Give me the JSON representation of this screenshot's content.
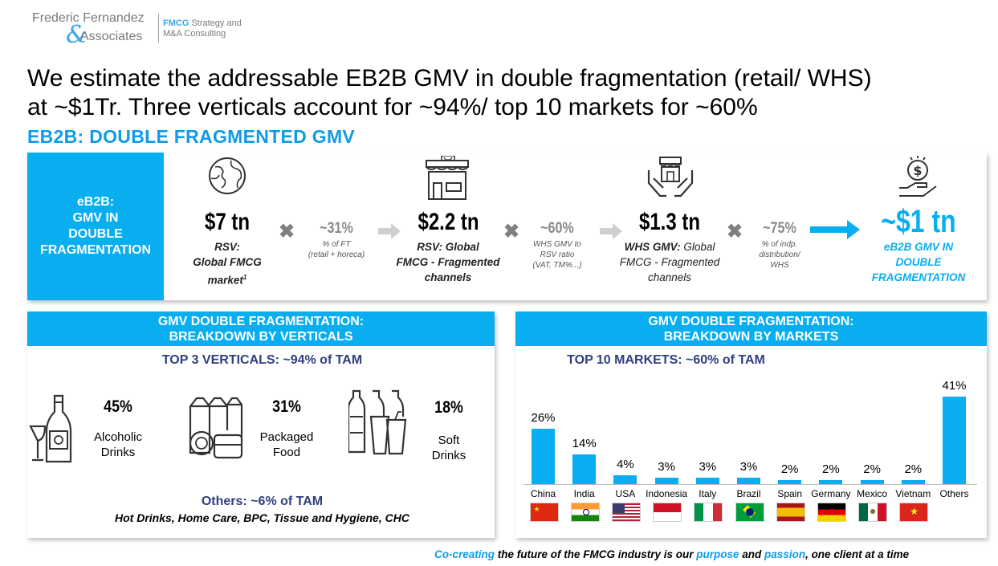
{
  "logo": {
    "name_line1": "Frederic Fernandez",
    "amp": "&",
    "name_line2": "Associates",
    "tag_line1": "FMCG Strategy and",
    "tag_line2": "M&A Consulting"
  },
  "headline": {
    "line1": "We estimate the addressable EB2B GMV in double fragmentation (retail/ WHS)",
    "line2": "at ~$1Tr. Three verticals account for ~94%/ top 10 markets for ~60%"
  },
  "subheadline": "EB2B: DOUBLE FRAGMENTED GMV",
  "flow": {
    "label_lines": [
      "eB2B:",
      "GMV IN",
      "DOUBLE",
      "FRAGMENTATION"
    ],
    "steps": [
      {
        "value": "$7 tn",
        "desc_bold": "RSV:",
        "desc_line2": "Global FMCG",
        "desc_line3": "market",
        "sup": "1",
        "icon": "globe-icon"
      },
      {
        "value": "$2.2 tn",
        "desc_bold": "RSV: Global",
        "desc_line2": "FMCG - Fragmented",
        "desc_line3": "channels",
        "icon": "storefront-icon"
      },
      {
        "value": "$1.3 tn",
        "desc_bold": "WHS GMV:",
        "desc_rest": " Global",
        "desc_line2": "FMCG - Fragmented",
        "desc_line3": "channels",
        "icon": "hands-shop-icon"
      },
      {
        "value": "~$1 tn",
        "desc_line1": "eB2B GMV IN",
        "desc_line2": "DOUBLE",
        "desc_line3": "FRAGMENTATION",
        "icon": "hand-coin-icon"
      }
    ],
    "ratios": [
      {
        "value": "~31%",
        "notes": [
          "% of FT",
          "(retail + horeca)"
        ]
      },
      {
        "value": "~60%",
        "notes": [
          "WHS GMV to",
          "RSV ratio",
          "(VAT, TM%...)"
        ]
      },
      {
        "value": "~75%",
        "notes": [
          "% of indp.",
          "distribution/",
          "WHS"
        ]
      }
    ],
    "multiply_symbol": "✖"
  },
  "verticals": {
    "title_line1": "GMV DOUBLE FRAGMENTATION:",
    "title_line2": "BREAKDOWN BY VERTICALS",
    "top_heading": "TOP 3 VERTICALS: ~94% of TAM",
    "items": [
      {
        "pct": "45%",
        "label_line1": "Alcoholic",
        "label_line2": "Drinks",
        "icon": "wine-bottle-icon"
      },
      {
        "pct": "31%",
        "label_line1": "Packaged",
        "label_line2": "Food",
        "icon": "packaged-food-icon"
      },
      {
        "pct": "18%",
        "label_line1": "Soft",
        "label_line2": "Drinks",
        "icon": "soft-drinks-icon"
      }
    ],
    "others_heading": "Others: ~6% of TAM",
    "others_list": "Hot Drinks, Home Care, BPC, Tissue and Hygiene, CHC"
  },
  "markets": {
    "title_line1": "GMV DOUBLE FRAGMENTATION:",
    "title_line2": "BREAKDOWN BY MARKETS",
    "top_heading": "TOP 10 MARKETS: ~60% of TAM"
  },
  "chart_data": {
    "type": "bar",
    "categories": [
      "China",
      "India",
      "USA",
      "Indonesia",
      "Italy",
      "Brazil",
      "Spain",
      "Germany",
      "Mexico",
      "Vietnam",
      "Others"
    ],
    "values": [
      26,
      14,
      4,
      3,
      3,
      3,
      2,
      2,
      2,
      2,
      41
    ],
    "value_labels": [
      "26%",
      "14%",
      "4%",
      "3%",
      "3%",
      "3%",
      "2%",
      "2%",
      "2%",
      "2%",
      "41%"
    ],
    "title": "TOP 10 MARKETS: ~60% of TAM",
    "ylim": [
      0,
      45
    ],
    "bar_color": "#08aef0",
    "flags": [
      "china-flag",
      "india-flag",
      "usa-flag",
      "indonesia-flag",
      "italy-flag",
      "brazil-flag",
      "spain-flag",
      "germany-flag",
      "mexico-flag",
      "vietnam-flag",
      null
    ]
  },
  "footer": {
    "part1": "Co-creating",
    "part2": " the future of the FMCG industry is our ",
    "part3": "purpose",
    "part4": " and ",
    "part5": "passion",
    "part6": ", one client at a time"
  },
  "colors": {
    "accent": "#08aef0",
    "dark_blue": "#2e3f80",
    "grey": "#808080"
  }
}
